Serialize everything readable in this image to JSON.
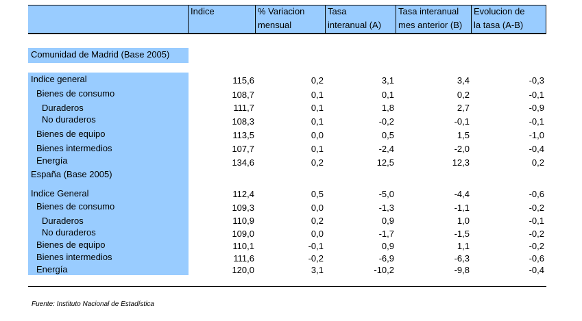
{
  "header": {
    "col1": "Indice",
    "col2": [
      "% Variacion",
      "mensual"
    ],
    "col3": [
      "Tasa",
      "interanual (A)"
    ],
    "col4": [
      "Tasa interanual",
      "mes anterior (B)"
    ],
    "col5": [
      "Evolucion de",
      "la tasa (A-B)"
    ]
  },
  "madrid": {
    "title": "Comunidad de Madrid (Base 2005)",
    "rows": [
      {
        "label": "Indice general",
        "v": [
          "115,6",
          "0,2",
          "3,1",
          "3,4",
          "-0,3"
        ]
      },
      {
        "label": "Bienes de consumo",
        "v": [
          "108,7",
          "0,1",
          "0,1",
          "0,2",
          "-0,1"
        ]
      },
      {
        "label": "Duraderos",
        "v": [
          "111,7",
          "0,1",
          "1,8",
          "2,7",
          "-0,9"
        ]
      },
      {
        "label": "No duraderos",
        "v": [
          "108,3",
          "0,1",
          "-0,2",
          "-0,1",
          "-0,1"
        ]
      },
      {
        "label": "Bienes de equipo",
        "v": [
          "113,5",
          "0,0",
          "0,5",
          "1,5",
          "-1,0"
        ]
      },
      {
        "label": "Bienes intermedios",
        "v": [
          "107,7",
          "0,1",
          "-2,4",
          "-2,0",
          "-0,4"
        ]
      },
      {
        "label": "Energía",
        "v": [
          "134,6",
          "0,2",
          "12,5",
          "12,3",
          "0,2"
        ]
      }
    ]
  },
  "espana": {
    "title": "España (Base 2005)",
    "rows": [
      {
        "label": "Indice General",
        "v": [
          "112,4",
          "0,5",
          "-5,0",
          "-4,4",
          "-0,6"
        ]
      },
      {
        "label": "Bienes de consumo",
        "v": [
          "109,3",
          "0,0",
          "-1,3",
          "-1,1",
          "-0,2"
        ]
      },
      {
        "label": "Duraderos",
        "v": [
          "110,9",
          "0,2",
          "0,9",
          "1,0",
          "-0,1"
        ]
      },
      {
        "label": "No duraderos",
        "v": [
          "109,0",
          "0,0",
          "-1,7",
          "-1,5",
          "-0,2"
        ]
      },
      {
        "label": "Bienes de equipo",
        "v": [
          "110,1",
          "-0,1",
          "0,9",
          "1,1",
          "-0,2"
        ]
      },
      {
        "label": "Bienes intermedios",
        "v": [
          "111,6",
          "-0,2",
          "-6,9",
          "-6,3",
          "-0,6"
        ]
      },
      {
        "label": "Energía",
        "v": [
          "120,0",
          "3,1",
          "-10,2",
          "-9,8",
          "-0,4"
        ]
      }
    ]
  },
  "source": "Fuente: Instituto Nacional de Estadística",
  "colors": {
    "label_bg": "#99ccff"
  }
}
